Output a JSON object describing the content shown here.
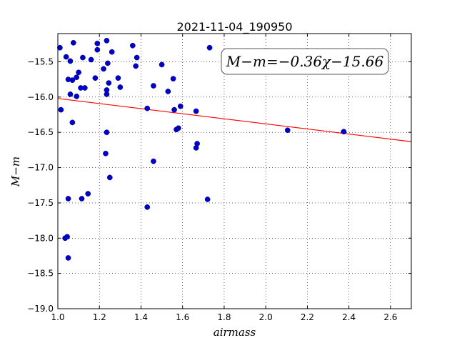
{
  "chart_data": {
    "type": "scatter",
    "title": "2021-11-04_190950",
    "xlabel": "airmass",
    "ylabel": "M−m",
    "xlim": [
      1.0,
      2.7
    ],
    "ylim": [
      -19.0,
      -15.1
    ],
    "xticks": [
      "1.0",
      "1.2",
      "1.4",
      "1.6",
      "1.8",
      "2.0",
      "2.2",
      "2.4",
      "2.6"
    ],
    "xtick_values": [
      1.0,
      1.2,
      1.4,
      1.6,
      1.8,
      2.0,
      2.2,
      2.4,
      2.6
    ],
    "yticks": [
      "−15.5",
      "−16.0",
      "−16.5",
      "−17.0",
      "−17.5",
      "−18.0",
      "−18.5",
      "−19.0"
    ],
    "ytick_values": [
      -15.5,
      -16.0,
      -16.5,
      -17.0,
      -17.5,
      -18.0,
      -18.5,
      -19.0
    ],
    "grid": true,
    "annotation": "M−m=−0.36χ−15.66",
    "fit_line": {
      "slope": -0.36,
      "intercept": -15.66,
      "color": "#ff0000"
    },
    "marker_color": "#0000cc",
    "points": [
      {
        "x": 1.01,
        "y": -15.3
      },
      {
        "x": 1.04,
        "y": -15.43
      },
      {
        "x": 1.05,
        "y": -15.75
      },
      {
        "x": 1.06,
        "y": -15.49
      },
      {
        "x": 1.07,
        "y": -15.76
      },
      {
        "x": 1.075,
        "y": -15.23
      },
      {
        "x": 1.09,
        "y": -15.72
      },
      {
        "x": 1.1,
        "y": -15.65
      },
      {
        "x": 1.11,
        "y": -15.87
      },
      {
        "x": 1.12,
        "y": -15.44
      },
      {
        "x": 1.13,
        "y": -15.87
      },
      {
        "x": 1.16,
        "y": -15.47
      },
      {
        "x": 1.18,
        "y": -15.73
      },
      {
        "x": 1.19,
        "y": -15.33
      },
      {
        "x": 1.19,
        "y": -15.24
      },
      {
        "x": 1.22,
        "y": -15.6
      },
      {
        "x": 1.235,
        "y": -15.2
      },
      {
        "x": 1.24,
        "y": -15.52
      },
      {
        "x": 1.245,
        "y": -15.8
      },
      {
        "x": 1.26,
        "y": -15.36
      },
      {
        "x": 1.29,
        "y": -15.73
      },
      {
        "x": 1.3,
        "y": -15.86
      },
      {
        "x": 1.36,
        "y": -15.27
      },
      {
        "x": 1.375,
        "y": -15.56
      },
      {
        "x": 1.38,
        "y": -15.44
      },
      {
        "x": 1.46,
        "y": -15.84
      },
      {
        "x": 1.5,
        "y": -15.54
      },
      {
        "x": 1.53,
        "y": -15.92
      },
      {
        "x": 1.555,
        "y": -15.74
      },
      {
        "x": 1.73,
        "y": -15.3
      },
      {
        "x": 1.015,
        "y": -16.18
      },
      {
        "x": 1.06,
        "y": -15.96
      },
      {
        "x": 1.07,
        "y": -16.36
      },
      {
        "x": 1.09,
        "y": -15.99
      },
      {
        "x": 1.235,
        "y": -15.96
      },
      {
        "x": 1.235,
        "y": -15.9
      },
      {
        "x": 1.235,
        "y": -16.5
      },
      {
        "x": 1.23,
        "y": -16.8
      },
      {
        "x": 1.25,
        "y": -17.14
      },
      {
        "x": 1.43,
        "y": -16.16
      },
      {
        "x": 1.46,
        "y": -16.91
      },
      {
        "x": 1.56,
        "y": -16.18
      },
      {
        "x": 1.57,
        "y": -16.46
      },
      {
        "x": 1.58,
        "y": -16.44
      },
      {
        "x": 1.59,
        "y": -16.13
      },
      {
        "x": 1.665,
        "y": -16.2
      },
      {
        "x": 1.665,
        "y": -16.72
      },
      {
        "x": 1.67,
        "y": -16.66
      },
      {
        "x": 2.105,
        "y": -16.47
      },
      {
        "x": 2.375,
        "y": -16.49
      },
      {
        "x": 1.05,
        "y": -17.44
      },
      {
        "x": 1.115,
        "y": -17.44
      },
      {
        "x": 1.145,
        "y": -17.37
      },
      {
        "x": 1.43,
        "y": -17.56
      },
      {
        "x": 1.72,
        "y": -17.45
      },
      {
        "x": 1.035,
        "y": -18.0
      },
      {
        "x": 1.045,
        "y": -17.98
      },
      {
        "x": 1.05,
        "y": -18.28
      }
    ]
  }
}
